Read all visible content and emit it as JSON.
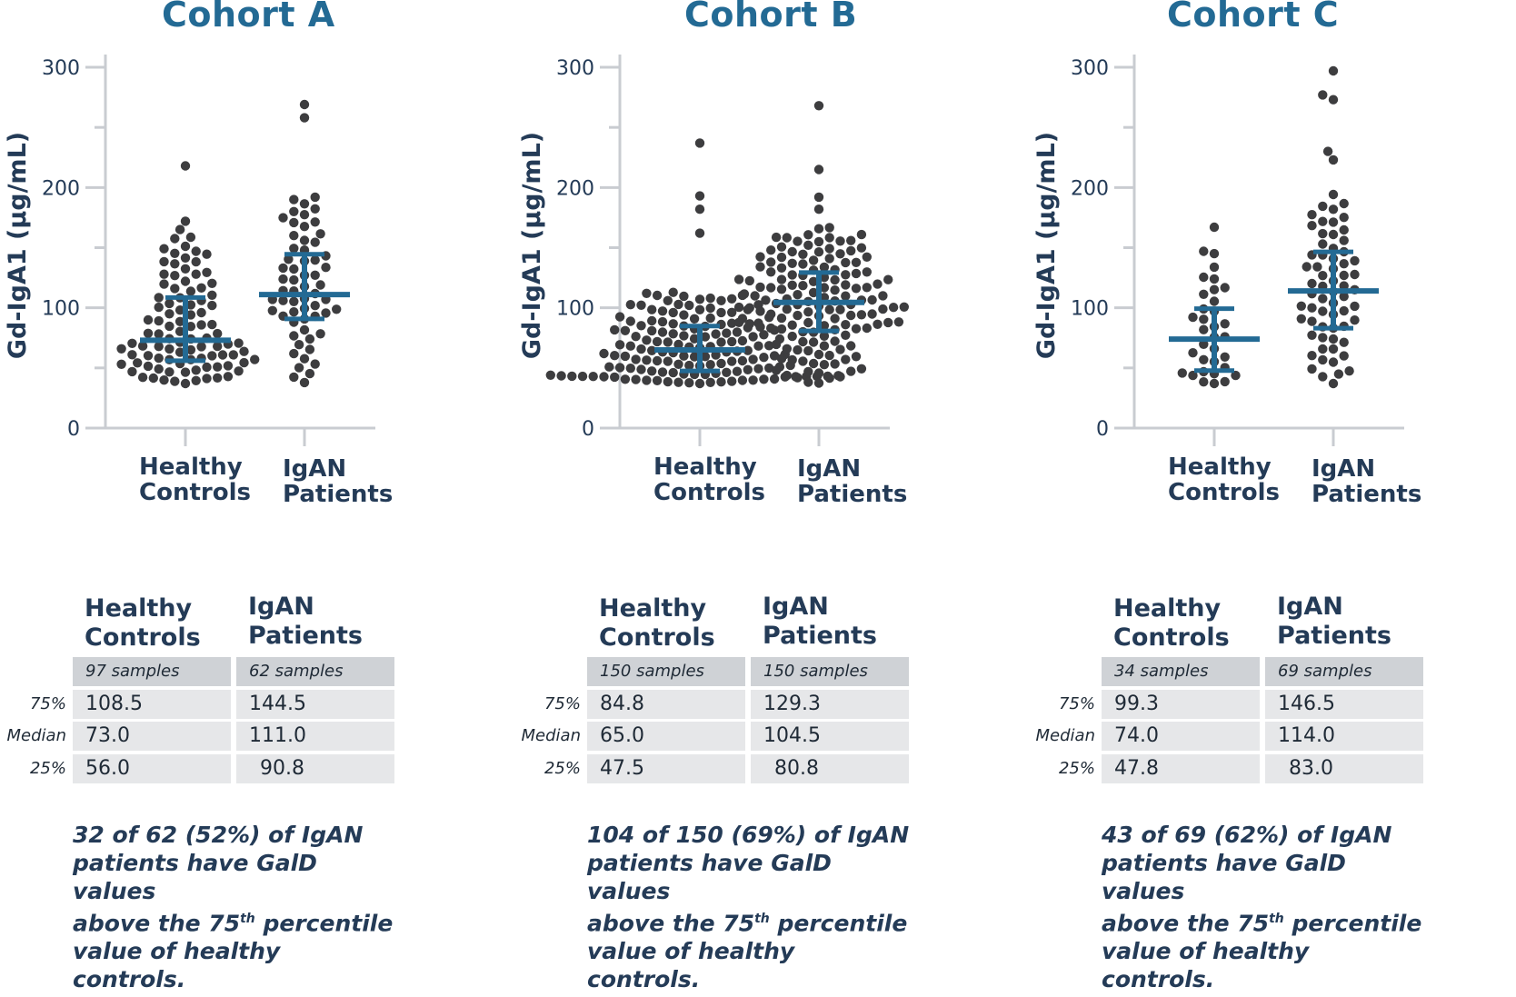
{
  "colors": {
    "title": "#236a94",
    "axis": "#c9ccd1",
    "dot": "#3d3d3f",
    "summary": "#236a94",
    "text": "#243b57"
  },
  "chart_data": [
    {
      "type": "scatter",
      "title": "Cohort A",
      "ylabel": "Gd-IgA1 (µg/mL)",
      "ylim": [
        0,
        300
      ],
      "yticks": [
        "0",
        "100",
        "200",
        "300"
      ],
      "categories": [
        "Healthy Controls",
        "IgAN Patients"
      ],
      "category_lines": [
        [
          "Healthy",
          "Controls"
        ],
        [
          "IgAN",
          "Patients"
        ]
      ],
      "groups": [
        {
          "n": 97,
          "median": 73.0,
          "q75": 108.5,
          "q25": 56.0,
          "min": 37,
          "max": 218,
          "outliers": [
            218,
            172,
            165
          ]
        },
        {
          "n": 62,
          "median": 111.0,
          "q75": 144.5,
          "q25": 90.8,
          "min": 37,
          "max": 269,
          "outliers": [
            269,
            258,
            192,
            180
          ]
        }
      ],
      "table": {
        "headers": [
          [
            "Healthy",
            "Controls"
          ],
          [
            "IgAN",
            "Patients"
          ]
        ],
        "samples": [
          "97 samples",
          "62 samples"
        ],
        "rows": [
          {
            "label": "75%",
            "values": [
              "108.5",
              "144.5"
            ]
          },
          {
            "label": "Median",
            "values": [
              "73.0",
              "111.0"
            ]
          },
          {
            "label": "25%",
            "values": [
              "56.0",
              "90.8"
            ]
          }
        ]
      },
      "note": {
        "line1": "32 of 62 (52%) of IgAN",
        "line2": "patients have GalD values",
        "line3_pre": "above the 75",
        "line3_sup": "th",
        "line3_post": " percentile",
        "line4": "value of healthy controls."
      }
    },
    {
      "type": "scatter",
      "title": "Cohort B",
      "ylabel": "Gd-IgA1 (µg/mL)",
      "ylim": [
        0,
        300
      ],
      "yticks": [
        "0",
        "100",
        "200",
        "300"
      ],
      "categories": [
        "Healthy Controls",
        "IgAN Patients"
      ],
      "category_lines": [
        [
          "Healthy",
          "Controls"
        ],
        [
          "IgAN",
          "Patients"
        ]
      ],
      "groups": [
        {
          "n": 150,
          "median": 65.0,
          "q75": 84.8,
          "q25": 47.5,
          "min": 37,
          "max": 237,
          "outliers": [
            237,
            193,
            182,
            162
          ]
        },
        {
          "n": 150,
          "median": 104.5,
          "q75": 129.3,
          "q25": 80.8,
          "min": 37,
          "max": 268,
          "outliers": [
            268,
            215,
            192,
            182
          ]
        }
      ],
      "table": {
        "headers": [
          [
            "Healthy",
            "Controls"
          ],
          [
            "IgAN",
            "Patients"
          ]
        ],
        "samples": [
          "150 samples",
          "150 samples"
        ],
        "rows": [
          {
            "label": "75%",
            "values": [
              "84.8",
              "129.3"
            ]
          },
          {
            "label": "Median",
            "values": [
              "65.0",
              "104.5"
            ]
          },
          {
            "label": "25%",
            "values": [
              "47.5",
              "80.8"
            ]
          }
        ]
      },
      "note": {
        "line1": "104 of 150 (69%) of IgAN",
        "line2": "patients have GalD values",
        "line3_pre": "above the 75",
        "line3_sup": "th",
        "line3_post": " percentile",
        "line4": "value of healthy controls."
      }
    },
    {
      "type": "scatter",
      "title": "Cohort C",
      "ylabel": "Gd-IgA1 (µg/mL)",
      "ylim": [
        0,
        300
      ],
      "yticks": [
        "0",
        "100",
        "200",
        "300"
      ],
      "categories": [
        "Healthy Controls",
        "IgAN Patients"
      ],
      "category_lines": [
        [
          "Healthy",
          "Controls"
        ],
        [
          "IgAN",
          "Patients"
        ]
      ],
      "groups": [
        {
          "n": 34,
          "median": 74.0,
          "q75": 99.3,
          "q25": 47.8,
          "min": 37,
          "max": 167,
          "outliers": [
            167,
            147,
            145
          ]
        },
        {
          "n": 69,
          "median": 114.0,
          "q75": 146.5,
          "q25": 83.0,
          "min": 37,
          "max": 297,
          "outliers": [
            297,
            277,
            273,
            230,
            223
          ]
        }
      ],
      "table": {
        "headers": [
          [
            "Healthy",
            "Controls"
          ],
          [
            "IgAN",
            "Patients"
          ]
        ],
        "samples": [
          "34 samples",
          "69 samples"
        ],
        "rows": [
          {
            "label": "75%",
            "values": [
              "99.3",
              "146.5"
            ]
          },
          {
            "label": "Median",
            "values": [
              "74.0",
              "114.0"
            ]
          },
          {
            "label": "25%",
            "values": [
              "47.8",
              "83.0"
            ]
          }
        ]
      },
      "note": {
        "line1": "43 of 69 (62%) of IgAN",
        "line2": "patients have GalD values",
        "line3_pre": "above the 75",
        "line3_sup": "th",
        "line3_post": " percentile",
        "line4": "value of healthy controls."
      }
    }
  ]
}
